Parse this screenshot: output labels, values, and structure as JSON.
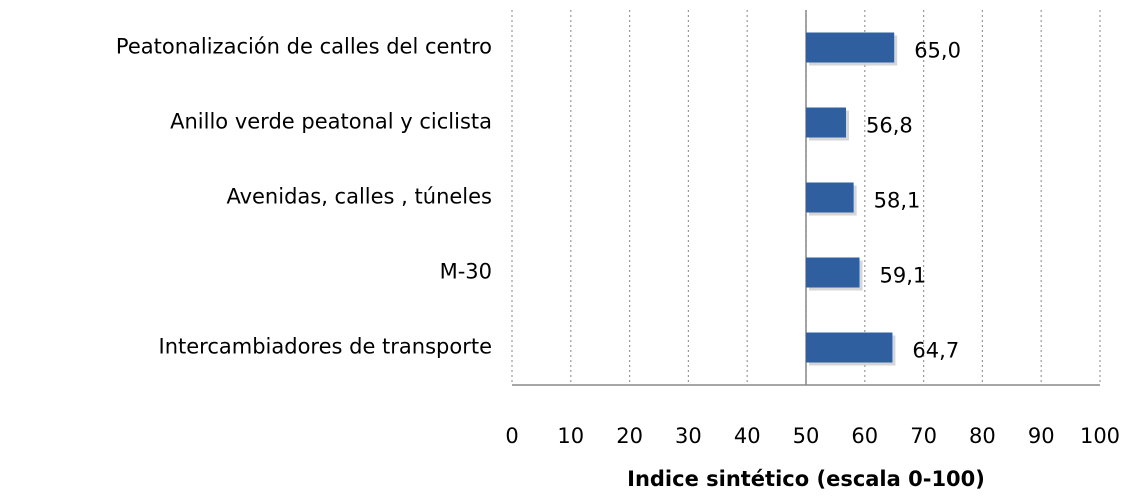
{
  "chart_data": {
    "type": "hbar",
    "x_axis_label": "Indice sintético (escala 0-100)",
    "categories": [
      "Peatonalización de calles del centro",
      "Anillo verde peatonal y ciclista",
      "Avenidas, calles , túneles",
      "M-30",
      "Intercambiadores de transporte"
    ],
    "values": [
      65.0,
      56.8,
      58.1,
      59.1,
      64.7
    ],
    "value_labels": [
      "65,0",
      "56,8",
      "58,1",
      "59,1",
      "64,7"
    ],
    "color": "#2f5f9e",
    "xlim": [
      0,
      100
    ],
    "xticks": [
      0,
      10,
      20,
      30,
      40,
      50,
      60,
      70,
      80,
      90,
      100
    ],
    "axis_crosses_at": 50,
    "grid": true
  }
}
